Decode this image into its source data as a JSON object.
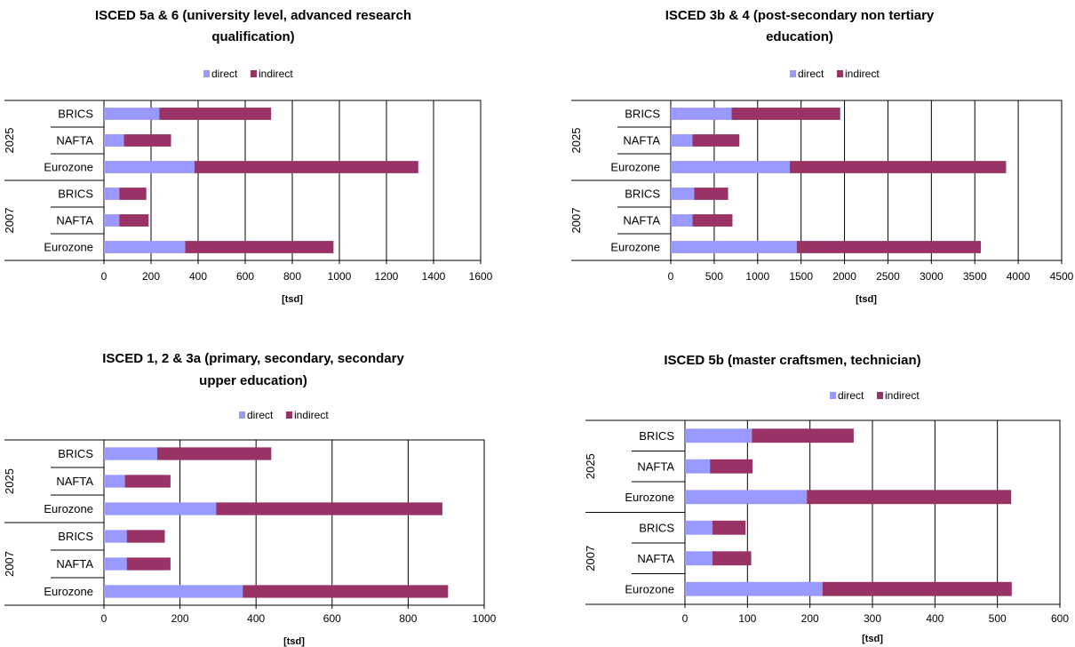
{
  "colors": {
    "direct": "#9999ff",
    "indirect": "#993366",
    "axis": "#000000",
    "grid": "#000000"
  },
  "chart_data": [
    {
      "type": "bar",
      "orientation": "horizontal",
      "stacked": true,
      "title_lines": [
        "ISCED 5a & 6 (university level, advanced research",
        "qualification)"
      ],
      "legend": [
        "direct",
        "indirect"
      ],
      "legend_position": "top",
      "xlabel": "[tsd]",
      "xlim": [
        0,
        1600
      ],
      "xticks": [
        0,
        200,
        400,
        600,
        800,
        1000,
        1200,
        1400,
        1600
      ],
      "grid": true,
      "groups": [
        "2025",
        "2007"
      ],
      "categories": [
        "BRICS",
        "NAFTA",
        "Eurozone",
        "BRICS",
        "NAFTA",
        "Eurozone"
      ],
      "series": [
        {
          "name": "direct",
          "values": [
            235,
            85,
            385,
            65,
            65,
            345
          ]
        },
        {
          "name": "indirect",
          "values": [
            475,
            200,
            950,
            115,
            125,
            630
          ]
        }
      ]
    },
    {
      "type": "bar",
      "orientation": "horizontal",
      "stacked": true,
      "title_lines": [
        "ISCED 3b & 4 (post-secondary non tertiary",
        "education)"
      ],
      "legend": [
        "direct",
        "indirect"
      ],
      "legend_position": "top",
      "xlabel": "[tsd]",
      "xlim": [
        0,
        4500
      ],
      "xticks": [
        0,
        500,
        1000,
        1500,
        2000,
        2500,
        3000,
        3500,
        4000,
        4500
      ],
      "grid": true,
      "groups": [
        "2025",
        "2007"
      ],
      "categories": [
        "BRICS",
        "NAFTA",
        "Eurozone",
        "BRICS",
        "NAFTA",
        "Eurozone"
      ],
      "series": [
        {
          "name": "direct",
          "values": [
            700,
            250,
            1370,
            270,
            250,
            1450
          ]
        },
        {
          "name": "indirect",
          "values": [
            1250,
            540,
            2490,
            390,
            460,
            2120
          ]
        }
      ]
    },
    {
      "type": "bar",
      "orientation": "horizontal",
      "stacked": true,
      "title_lines": [
        "ISCED 1, 2 & 3a (primary, secondary, secondary",
        "upper education)"
      ],
      "legend": [
        "direct",
        "indirect"
      ],
      "legend_position": "top",
      "xlabel": "[tsd]",
      "xlim": [
        0,
        1000
      ],
      "xticks": [
        0,
        200,
        400,
        600,
        800,
        1000
      ],
      "grid": true,
      "groups": [
        "2025",
        "2007"
      ],
      "categories": [
        "BRICS",
        "NAFTA",
        "Eurozone",
        "BRICS",
        "NAFTA",
        "Eurozone"
      ],
      "series": [
        {
          "name": "direct",
          "values": [
            140,
            55,
            295,
            60,
            60,
            365
          ]
        },
        {
          "name": "indirect",
          "values": [
            300,
            120,
            595,
            100,
            115,
            540
          ]
        }
      ]
    },
    {
      "type": "bar",
      "orientation": "horizontal",
      "stacked": true,
      "title_lines": [
        "ISCED  5b (master craftsmen, technician)"
      ],
      "legend": [
        "direct",
        "indirect"
      ],
      "legend_position": "top",
      "xlabel": "[tsd]",
      "xlim": [
        0,
        600
      ],
      "xticks": [
        0,
        100,
        200,
        300,
        400,
        500,
        600
      ],
      "grid": true,
      "groups": [
        "2025",
        "2007"
      ],
      "categories": [
        "BRICS",
        "NAFTA",
        "Eurozone",
        "BRICS",
        "NAFTA",
        "Eurozone"
      ],
      "series": [
        {
          "name": "direct",
          "values": [
            107,
            40,
            195,
            44,
            44,
            220
          ]
        },
        {
          "name": "indirect",
          "values": [
            163,
            68,
            327,
            53,
            62,
            303
          ]
        }
      ]
    }
  ]
}
